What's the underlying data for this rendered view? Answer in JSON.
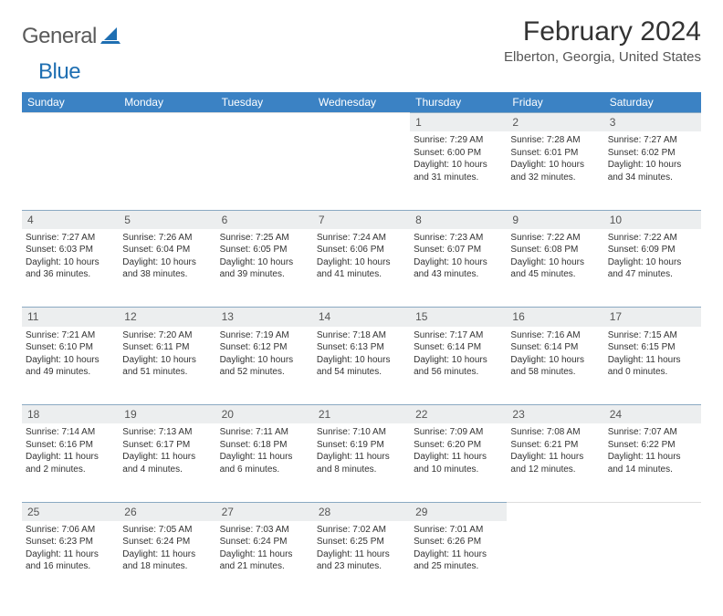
{
  "logo": {
    "general": "General",
    "blue": "Blue"
  },
  "title": "February 2024",
  "location": "Elberton, Georgia, United States",
  "colors": {
    "header_bg": "#3b82c4",
    "header_text": "#ffffff",
    "daynum_bg": "#eceeef",
    "row_border": "#8aa9c2",
    "logo_gray": "#5a5a5a",
    "logo_blue": "#1f6fb2"
  },
  "weekdays": [
    "Sunday",
    "Monday",
    "Tuesday",
    "Wednesday",
    "Thursday",
    "Friday",
    "Saturday"
  ],
  "weeks": [
    {
      "nums": [
        "",
        "",
        "",
        "",
        "1",
        "2",
        "3"
      ],
      "cells": [
        null,
        null,
        null,
        null,
        {
          "sunrise": "Sunrise: 7:29 AM",
          "sunset": "Sunset: 6:00 PM",
          "day1": "Daylight: 10 hours",
          "day2": "and 31 minutes."
        },
        {
          "sunrise": "Sunrise: 7:28 AM",
          "sunset": "Sunset: 6:01 PM",
          "day1": "Daylight: 10 hours",
          "day2": "and 32 minutes."
        },
        {
          "sunrise": "Sunrise: 7:27 AM",
          "sunset": "Sunset: 6:02 PM",
          "day1": "Daylight: 10 hours",
          "day2": "and 34 minutes."
        }
      ]
    },
    {
      "nums": [
        "4",
        "5",
        "6",
        "7",
        "8",
        "9",
        "10"
      ],
      "cells": [
        {
          "sunrise": "Sunrise: 7:27 AM",
          "sunset": "Sunset: 6:03 PM",
          "day1": "Daylight: 10 hours",
          "day2": "and 36 minutes."
        },
        {
          "sunrise": "Sunrise: 7:26 AM",
          "sunset": "Sunset: 6:04 PM",
          "day1": "Daylight: 10 hours",
          "day2": "and 38 minutes."
        },
        {
          "sunrise": "Sunrise: 7:25 AM",
          "sunset": "Sunset: 6:05 PM",
          "day1": "Daylight: 10 hours",
          "day2": "and 39 minutes."
        },
        {
          "sunrise": "Sunrise: 7:24 AM",
          "sunset": "Sunset: 6:06 PM",
          "day1": "Daylight: 10 hours",
          "day2": "and 41 minutes."
        },
        {
          "sunrise": "Sunrise: 7:23 AM",
          "sunset": "Sunset: 6:07 PM",
          "day1": "Daylight: 10 hours",
          "day2": "and 43 minutes."
        },
        {
          "sunrise": "Sunrise: 7:22 AM",
          "sunset": "Sunset: 6:08 PM",
          "day1": "Daylight: 10 hours",
          "day2": "and 45 minutes."
        },
        {
          "sunrise": "Sunrise: 7:22 AM",
          "sunset": "Sunset: 6:09 PM",
          "day1": "Daylight: 10 hours",
          "day2": "and 47 minutes."
        }
      ]
    },
    {
      "nums": [
        "11",
        "12",
        "13",
        "14",
        "15",
        "16",
        "17"
      ],
      "cells": [
        {
          "sunrise": "Sunrise: 7:21 AM",
          "sunset": "Sunset: 6:10 PM",
          "day1": "Daylight: 10 hours",
          "day2": "and 49 minutes."
        },
        {
          "sunrise": "Sunrise: 7:20 AM",
          "sunset": "Sunset: 6:11 PM",
          "day1": "Daylight: 10 hours",
          "day2": "and 51 minutes."
        },
        {
          "sunrise": "Sunrise: 7:19 AM",
          "sunset": "Sunset: 6:12 PM",
          "day1": "Daylight: 10 hours",
          "day2": "and 52 minutes."
        },
        {
          "sunrise": "Sunrise: 7:18 AM",
          "sunset": "Sunset: 6:13 PM",
          "day1": "Daylight: 10 hours",
          "day2": "and 54 minutes."
        },
        {
          "sunrise": "Sunrise: 7:17 AM",
          "sunset": "Sunset: 6:14 PM",
          "day1": "Daylight: 10 hours",
          "day2": "and 56 minutes."
        },
        {
          "sunrise": "Sunrise: 7:16 AM",
          "sunset": "Sunset: 6:14 PM",
          "day1": "Daylight: 10 hours",
          "day2": "and 58 minutes."
        },
        {
          "sunrise": "Sunrise: 7:15 AM",
          "sunset": "Sunset: 6:15 PM",
          "day1": "Daylight: 11 hours",
          "day2": "and 0 minutes."
        }
      ]
    },
    {
      "nums": [
        "18",
        "19",
        "20",
        "21",
        "22",
        "23",
        "24"
      ],
      "cells": [
        {
          "sunrise": "Sunrise: 7:14 AM",
          "sunset": "Sunset: 6:16 PM",
          "day1": "Daylight: 11 hours",
          "day2": "and 2 minutes."
        },
        {
          "sunrise": "Sunrise: 7:13 AM",
          "sunset": "Sunset: 6:17 PM",
          "day1": "Daylight: 11 hours",
          "day2": "and 4 minutes."
        },
        {
          "sunrise": "Sunrise: 7:11 AM",
          "sunset": "Sunset: 6:18 PM",
          "day1": "Daylight: 11 hours",
          "day2": "and 6 minutes."
        },
        {
          "sunrise": "Sunrise: 7:10 AM",
          "sunset": "Sunset: 6:19 PM",
          "day1": "Daylight: 11 hours",
          "day2": "and 8 minutes."
        },
        {
          "sunrise": "Sunrise: 7:09 AM",
          "sunset": "Sunset: 6:20 PM",
          "day1": "Daylight: 11 hours",
          "day2": "and 10 minutes."
        },
        {
          "sunrise": "Sunrise: 7:08 AM",
          "sunset": "Sunset: 6:21 PM",
          "day1": "Daylight: 11 hours",
          "day2": "and 12 minutes."
        },
        {
          "sunrise": "Sunrise: 7:07 AM",
          "sunset": "Sunset: 6:22 PM",
          "day1": "Daylight: 11 hours",
          "day2": "and 14 minutes."
        }
      ]
    },
    {
      "nums": [
        "25",
        "26",
        "27",
        "28",
        "29",
        "",
        ""
      ],
      "cells": [
        {
          "sunrise": "Sunrise: 7:06 AM",
          "sunset": "Sunset: 6:23 PM",
          "day1": "Daylight: 11 hours",
          "day2": "and 16 minutes."
        },
        {
          "sunrise": "Sunrise: 7:05 AM",
          "sunset": "Sunset: 6:24 PM",
          "day1": "Daylight: 11 hours",
          "day2": "and 18 minutes."
        },
        {
          "sunrise": "Sunrise: 7:03 AM",
          "sunset": "Sunset: 6:24 PM",
          "day1": "Daylight: 11 hours",
          "day2": "and 21 minutes."
        },
        {
          "sunrise": "Sunrise: 7:02 AM",
          "sunset": "Sunset: 6:25 PM",
          "day1": "Daylight: 11 hours",
          "day2": "and 23 minutes."
        },
        {
          "sunrise": "Sunrise: 7:01 AM",
          "sunset": "Sunset: 6:26 PM",
          "day1": "Daylight: 11 hours",
          "day2": "and 25 minutes."
        },
        null,
        null
      ]
    }
  ]
}
